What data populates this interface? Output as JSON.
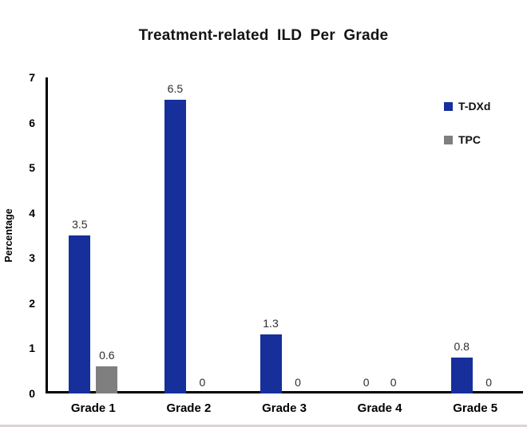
{
  "title": "Treatment-related ILD Per Grade",
  "chart_data": {
    "type": "bar",
    "title": "Treatment-related ILD Per Grade",
    "categories": [
      "Grade 1",
      "Grade 2",
      "Grade 3",
      "Grade 4",
      "Grade 5"
    ],
    "series": [
      {
        "name": "T-DXd",
        "color": "#162f9b",
        "values": [
          3.5,
          6.5,
          1.3,
          0,
          0.8
        ]
      },
      {
        "name": "TPC",
        "color": "#7f7f7f",
        "values": [
          0.6,
          0,
          0,
          0,
          0
        ]
      }
    ],
    "xlabel": "",
    "ylabel": "Percentage",
    "ylim": [
      0,
      7
    ],
    "yticks": [
      0,
      1,
      2,
      3,
      4,
      5,
      6,
      7
    ],
    "grid": false,
    "legend_position": "top-right",
    "data_labels_shown": true
  },
  "colors": {
    "background": "#ffffff",
    "axis": "#000000",
    "title_text": "#141414",
    "value_label_text": "#2e2e2e"
  }
}
